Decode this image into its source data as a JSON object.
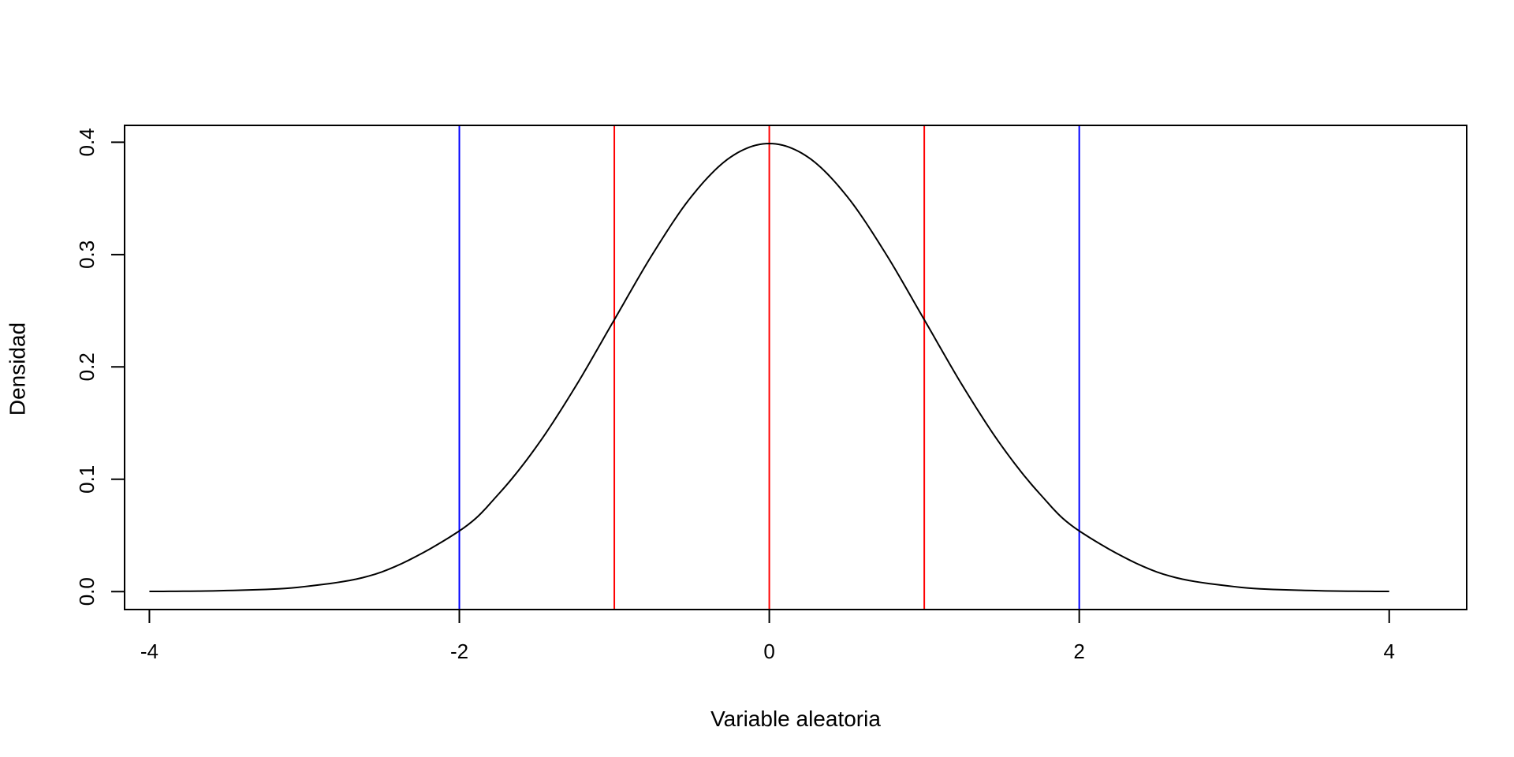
{
  "chart_data": {
    "type": "line",
    "title": "",
    "xlabel": "Variable aleatoria",
    "ylabel": "Densidad",
    "xlim": [
      -4.16,
      4.5
    ],
    "ylim": [
      -0.016,
      0.415
    ],
    "grid": false,
    "legend": "none",
    "x_ticks": [
      -4,
      -2,
      0,
      2,
      4
    ],
    "x_tick_labels": [
      "-4",
      "-2",
      "0",
      "2",
      "4"
    ],
    "y_ticks": [
      0.0,
      0.1,
      0.2,
      0.3,
      0.4
    ],
    "y_tick_labels": [
      "0.0",
      "0.1",
      "0.2",
      "0.3",
      "0.4"
    ],
    "series": [
      {
        "color": "#000000",
        "x": [
          -4.0,
          -3.5,
          -3.0,
          -2.5,
          -2.0,
          -1.75,
          -1.5,
          -1.25,
          -1.0,
          -0.75,
          -0.5,
          -0.25,
          0.0,
          0.25,
          0.5,
          0.75,
          1.0,
          1.25,
          1.5,
          1.75,
          2.0,
          2.5,
          3.0,
          3.5,
          4.0
        ],
        "y": [
          0.0001,
          0.0009,
          0.0044,
          0.0175,
          0.054,
          0.0863,
          0.1295,
          0.1826,
          0.242,
          0.3011,
          0.3521,
          0.3867,
          0.3989,
          0.3867,
          0.3521,
          0.3011,
          0.242,
          0.1826,
          0.1295,
          0.0863,
          0.054,
          0.0175,
          0.0044,
          0.0009,
          0.0001
        ]
      }
    ],
    "vertical_lines": [
      {
        "x": -2,
        "color": "#0000ff"
      },
      {
        "x": -1,
        "color": "#ff0000"
      },
      {
        "x": 0,
        "color": "#ff0000"
      },
      {
        "x": 1,
        "color": "#ff0000"
      },
      {
        "x": 2,
        "color": "#0000ff"
      }
    ]
  }
}
